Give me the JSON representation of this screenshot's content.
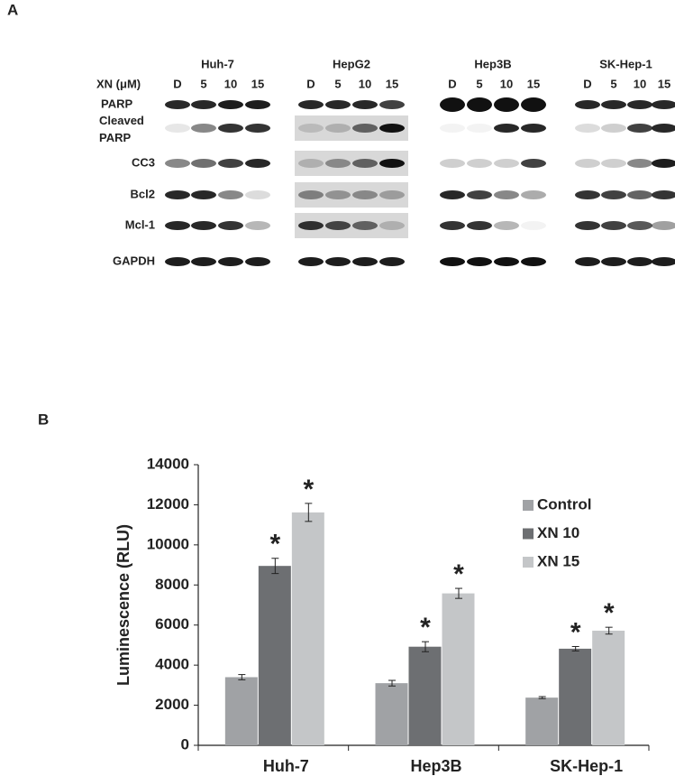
{
  "panel_labels": [
    "A",
    "B"
  ],
  "blot": {
    "treatment_label": "XN (μM)",
    "doses": [
      "D",
      "5",
      "10",
      "15"
    ],
    "cell_lines": [
      "Huh-7",
      "HepG2",
      "Hep3B",
      "SK-Hep-1"
    ],
    "proteins": [
      "PARP",
      "Cleaved PARP",
      "CC3",
      "Bcl2",
      "Mcl-1",
      "GAPDH"
    ]
  },
  "chart_data": {
    "type": "bar",
    "ylabel": "Luminescence (RLU)",
    "categories": [
      "Huh-7",
      "Hep3B",
      "SK-Hep-1"
    ],
    "series": [
      {
        "name": "Control",
        "color": "#a0a2a5",
        "values": [
          3400,
          3100,
          2380
        ],
        "errors": [
          130,
          140,
          50
        ]
      },
      {
        "name": "XN 10",
        "color": "#6d6f72",
        "values": [
          8950,
          4920,
          4820
        ],
        "errors": [
          380,
          250,
          110
        ],
        "annotations": [
          "*",
          "*",
          "*"
        ]
      },
      {
        "name": "XN 15",
        "color": "#c4c6c8",
        "values": [
          11620,
          7580,
          5720
        ],
        "errors": [
          450,
          250,
          170
        ],
        "annotations": [
          "*",
          "*",
          "*"
        ]
      }
    ],
    "ylim": [
      0,
      14000
    ],
    "yticks": [
      0,
      2000,
      4000,
      6000,
      8000,
      10000,
      12000,
      14000
    ],
    "grid": false,
    "legend": "upper right"
  }
}
